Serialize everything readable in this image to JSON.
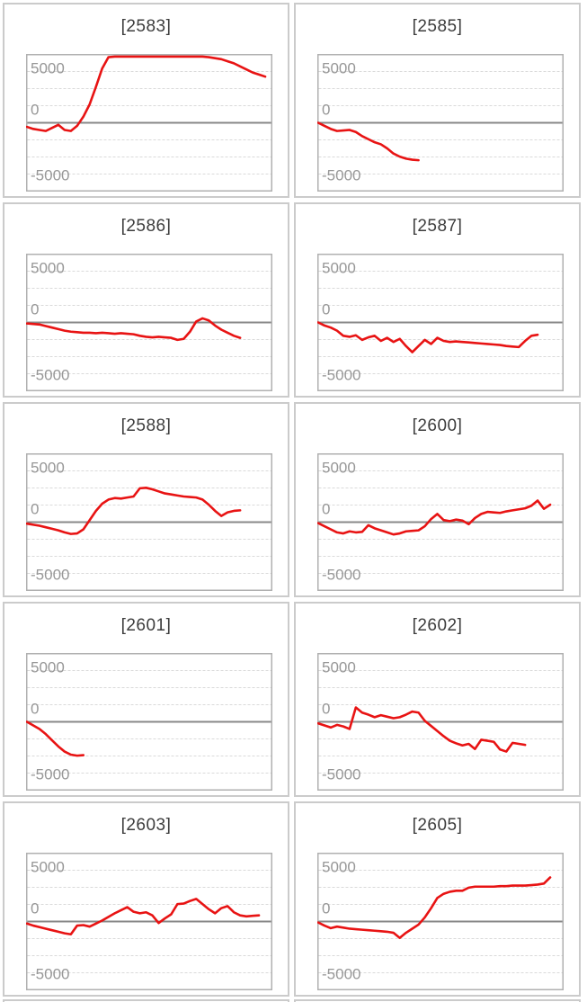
{
  "page": {
    "background": "#ffffff",
    "description_labels": {
      "grid_rows": 5,
      "grid_columns": 2
    }
  },
  "chart_data": {
    "type": "line",
    "layout": {
      "columns": 2,
      "legend": "none",
      "grid": "horizontal-dashed"
    },
    "colors": {
      "series": "#e81313",
      "zero_line": "#888888",
      "gridline": "#dadada",
      "plot_border": "#b0b0b0",
      "cell_border": "#cbcbcb",
      "tick_label": "#979797",
      "title": "#3d3d3d"
    },
    "y_axis": {
      "tick_labels": [
        "5000",
        "0",
        "-5000"
      ],
      "tick_values": [
        5000,
        0,
        -5000
      ],
      "ylim": [
        -6700,
        6700
      ],
      "gridline_intervals": 8,
      "zero_line_solid": true
    },
    "x_axis": {
      "tick_labels": [],
      "slots": 40
    },
    "charts": [
      {
        "title": "[2583]",
        "values": [
          -400,
          -600,
          -700,
          -800,
          -500,
          -200,
          -700,
          -800,
          -300,
          600,
          1800,
          3500,
          5300,
          6400,
          6450,
          6450,
          6450,
          6450,
          6450,
          6450,
          6450,
          6450,
          6450,
          6450,
          6450,
          6450,
          6450,
          6450,
          6450,
          6400,
          6300,
          6200,
          6000,
          5800,
          5500,
          5200,
          4900,
          4700,
          4500
        ]
      },
      {
        "title": "[2585]",
        "values": [
          0,
          -300,
          -600,
          -800,
          -750,
          -700,
          -900,
          -1300,
          -1600,
          -1900,
          -2100,
          -2500,
          -3000,
          -3300,
          -3500,
          -3600,
          -3650
        ]
      },
      {
        "title": "[2586]",
        "values": [
          -100,
          -150,
          -200,
          -350,
          -500,
          -650,
          -800,
          -900,
          -950,
          -1000,
          -1000,
          -1050,
          -1000,
          -1050,
          -1100,
          -1050,
          -1100,
          -1150,
          -1300,
          -1400,
          -1450,
          -1400,
          -1450,
          -1500,
          -1700,
          -1600,
          -900,
          100,
          400,
          200,
          -300,
          -700,
          -1000,
          -1300,
          -1500
        ]
      },
      {
        "title": "[2587]",
        "values": [
          0,
          -300,
          -500,
          -800,
          -1300,
          -1400,
          -1250,
          -1700,
          -1450,
          -1300,
          -1800,
          -1500,
          -1900,
          -1600,
          -2300,
          -2900,
          -2300,
          -1700,
          -2100,
          -1500,
          -1800,
          -1900,
          -1850,
          -1900,
          -1950,
          -2000,
          -2050,
          -2100,
          -2150,
          -2200,
          -2300,
          -2350,
          -2400,
          -1800,
          -1300,
          -1200
        ]
      },
      {
        "title": "[2588]",
        "values": [
          -150,
          -250,
          -350,
          -500,
          -650,
          -800,
          -1000,
          -1150,
          -1100,
          -700,
          200,
          1100,
          1800,
          2200,
          2350,
          2300,
          2400,
          2500,
          3300,
          3350,
          3200,
          3000,
          2800,
          2700,
          2600,
          2500,
          2450,
          2400,
          2200,
          1700,
          1100,
          600,
          950,
          1100,
          1150
        ]
      },
      {
        "title": "[2600]",
        "values": [
          -100,
          -400,
          -700,
          -1000,
          -1100,
          -900,
          -1000,
          -950,
          -300,
          -600,
          -800,
          -1000,
          -1200,
          -1100,
          -900,
          -850,
          -800,
          -400,
          300,
          800,
          200,
          100,
          250,
          150,
          -200,
          400,
          800,
          1000,
          950,
          900,
          1050,
          1150,
          1250,
          1350,
          1600,
          2100,
          1300,
          1700
        ]
      },
      {
        "title": "[2601]",
        "values": [
          0,
          -350,
          -700,
          -1200,
          -1800,
          -2400,
          -2900,
          -3200,
          -3300,
          -3250
        ]
      },
      {
        "title": "[2602]",
        "values": [
          -150,
          -350,
          -550,
          -300,
          -450,
          -700,
          1400,
          900,
          700,
          450,
          650,
          500,
          350,
          450,
          700,
          1000,
          900,
          100,
          -400,
          -900,
          -1400,
          -1850,
          -2100,
          -2300,
          -2150,
          -2650,
          -1750,
          -1850,
          -1950,
          -2700,
          -2900,
          -2050,
          -2150,
          -2250
        ]
      },
      {
        "title": "[2603]",
        "values": [
          -200,
          -400,
          -550,
          -700,
          -850,
          -1000,
          -1150,
          -1250,
          -400,
          -350,
          -500,
          -200,
          100,
          450,
          800,
          1100,
          1400,
          950,
          800,
          900,
          600,
          -150,
          300,
          700,
          1700,
          1750,
          2000,
          2200,
          1700,
          1200,
          800,
          1300,
          1500,
          900,
          600,
          500,
          550,
          600
        ]
      },
      {
        "title": "[2605]",
        "values": [
          -100,
          -400,
          -650,
          -500,
          -600,
          -700,
          -750,
          -800,
          -850,
          -900,
          -950,
          -1000,
          -1100,
          -1600,
          -1100,
          -700,
          -300,
          400,
          1300,
          2300,
          2700,
          2900,
          3000,
          3000,
          3300,
          3400,
          3400,
          3400,
          3400,
          3450,
          3450,
          3500,
          3500,
          3500,
          3550,
          3600,
          3700,
          4300
        ]
      }
    ]
  }
}
